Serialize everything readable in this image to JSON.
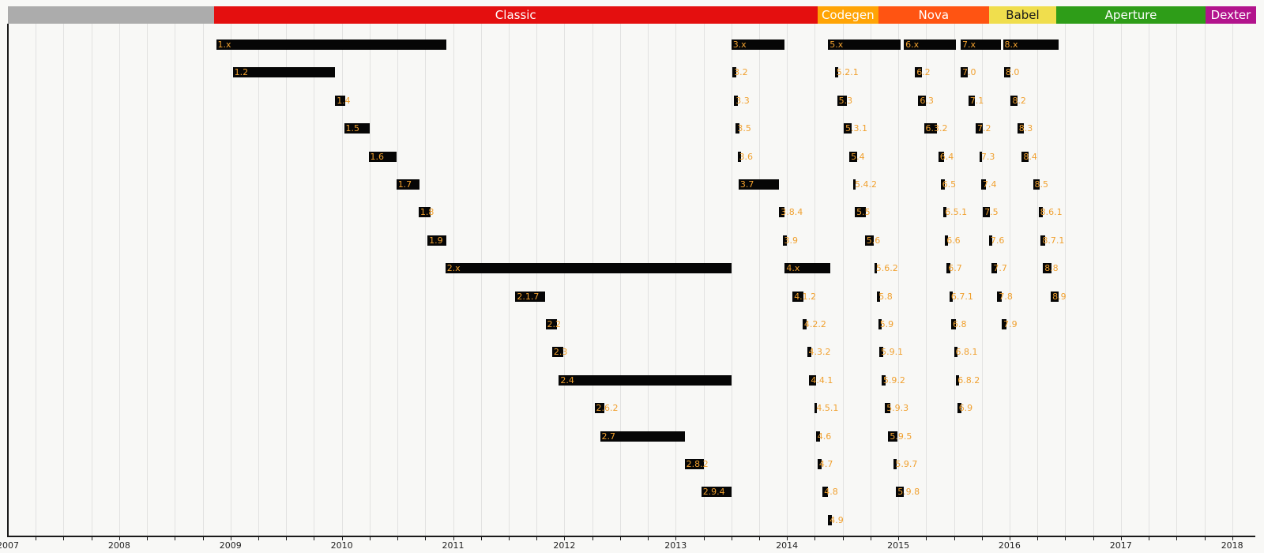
{
  "chart_data": {
    "type": "gantt",
    "title": "Version release timeline",
    "bar_color": "#060606",
    "bar_label_color": "#f0a02f",
    "x_axis": {
      "min": 2007,
      "max": 2018.215,
      "tick_years": [
        2007,
        2008,
        2009,
        2010,
        2011,
        2012,
        2013,
        2014,
        2015,
        2016,
        2017,
        2018
      ],
      "minor_tick_interval": 0.25,
      "grid": true
    },
    "eras": [
      {
        "label": "",
        "start": 2007.0,
        "end": 2008.85,
        "color": "#acacac",
        "text_color": "#ffffff"
      },
      {
        "label": "Classic",
        "start": 2008.85,
        "end": 2014.275,
        "color": "#e40f0f",
        "text_color": "#ffffff"
      },
      {
        "label": "Codegen",
        "start": 2014.275,
        "end": 2014.82,
        "color": "#ffa405",
        "text_color": "#ffffff"
      },
      {
        "label": "Nova",
        "start": 2014.82,
        "end": 2015.815,
        "color": "#ff5412",
        "text_color": "#ffffff"
      },
      {
        "label": "Babel",
        "start": 2015.815,
        "end": 2016.42,
        "color": "#f0de4d",
        "text_color": "#1a1a1a"
      },
      {
        "label": "Aperture",
        "start": 2016.42,
        "end": 2017.76,
        "color": "#2e9d18",
        "text_color": "#ffffff"
      },
      {
        "label": "Dexter",
        "start": 2017.76,
        "end": 2018.215,
        "color": "#b2138c",
        "text_color": "#ffffff"
      }
    ],
    "releases": [
      {
        "label": "1.x",
        "row": 1,
        "start": 2008.87,
        "end": 2010.94
      },
      {
        "label": "1.2",
        "row": 2,
        "start": 2009.02,
        "end": 2009.94
      },
      {
        "label": "1.4",
        "row": 3,
        "start": 2009.94,
        "end": 2010.03
      },
      {
        "label": "1.5",
        "row": 4,
        "start": 2010.02,
        "end": 2010.25
      },
      {
        "label": "1.6",
        "row": 5,
        "start": 2010.24,
        "end": 2010.49
      },
      {
        "label": "1.7",
        "row": 6,
        "start": 2010.49,
        "end": 2010.7
      },
      {
        "label": "1.8",
        "row": 7,
        "start": 2010.69,
        "end": 2010.8
      },
      {
        "label": "1.9",
        "row": 8,
        "start": 2010.77,
        "end": 2010.94
      },
      {
        "label": "2.x",
        "row": 9,
        "start": 2010.93,
        "end": 2013.5
      },
      {
        "label": "2.1.7",
        "row": 10,
        "start": 2011.56,
        "end": 2011.83
      },
      {
        "label": "2.2",
        "row": 11,
        "start": 2011.83,
        "end": 2011.93
      },
      {
        "label": "2.3",
        "row": 12,
        "start": 2011.89,
        "end": 2011.99
      },
      {
        "label": "2.4",
        "row": 13,
        "start": 2011.95,
        "end": 2013.5
      },
      {
        "label": "2.6.2",
        "row": 14,
        "start": 2012.27,
        "end": 2012.36
      },
      {
        "label": "2.7",
        "row": 15,
        "start": 2012.32,
        "end": 2013.08
      },
      {
        "label": "2.8.2",
        "row": 16,
        "start": 2013.08,
        "end": 2013.25
      },
      {
        "label": "2.9.4",
        "row": 17,
        "start": 2013.23,
        "end": 2013.5
      },
      {
        "label": "3.x",
        "row": 1,
        "start": 2013.5,
        "end": 2013.98
      },
      {
        "label": "3.2",
        "row": 2,
        "start": 2013.51,
        "end": 2013.545
      },
      {
        "label": "3.3",
        "row": 3,
        "start": 2013.525,
        "end": 2013.56
      },
      {
        "label": "3.5",
        "row": 4,
        "start": 2013.54,
        "end": 2013.57
      },
      {
        "label": "3.6",
        "row": 5,
        "start": 2013.555,
        "end": 2013.59
      },
      {
        "label": "3.7",
        "row": 6,
        "start": 2013.565,
        "end": 2013.93
      },
      {
        "label": "3.8.4",
        "row": 7,
        "start": 2013.93,
        "end": 2013.975
      },
      {
        "label": "3.9",
        "row": 8,
        "start": 2013.96,
        "end": 2014.0
      },
      {
        "label": "4.x",
        "row": 9,
        "start": 2013.98,
        "end": 2014.39
      },
      {
        "label": "4.1.2",
        "row": 10,
        "start": 2014.05,
        "end": 2014.15
      },
      {
        "label": "4.2.2",
        "row": 11,
        "start": 2014.14,
        "end": 2014.18
      },
      {
        "label": "4.3.2",
        "row": 12,
        "start": 2014.18,
        "end": 2014.22
      },
      {
        "label": "4.4.1",
        "row": 13,
        "start": 2014.2,
        "end": 2014.26
      },
      {
        "label": "4.5.1",
        "row": 14,
        "start": 2014.25,
        "end": 2014.27
      },
      {
        "label": "4.6",
        "row": 15,
        "start": 2014.26,
        "end": 2014.3
      },
      {
        "label": "4.7",
        "row": 16,
        "start": 2014.275,
        "end": 2014.31
      },
      {
        "label": "4.8",
        "row": 17,
        "start": 2014.32,
        "end": 2014.37
      },
      {
        "label": "4.9",
        "row": 18,
        "start": 2014.37,
        "end": 2014.405
      },
      {
        "label": "5.x",
        "row": 1,
        "start": 2014.37,
        "end": 2015.02
      },
      {
        "label": "5.2.1",
        "row": 2,
        "start": 2014.43,
        "end": 2014.46
      },
      {
        "label": "5.3",
        "row": 3,
        "start": 2014.45,
        "end": 2014.54
      },
      {
        "label": "5.3.1",
        "row": 4,
        "start": 2014.51,
        "end": 2014.58
      },
      {
        "label": "5.4",
        "row": 5,
        "start": 2014.56,
        "end": 2014.63
      },
      {
        "label": "5.4.2",
        "row": 6,
        "start": 2014.595,
        "end": 2014.615
      },
      {
        "label": "5.5",
        "row": 7,
        "start": 2014.61,
        "end": 2014.71
      },
      {
        "label": "5.6",
        "row": 8,
        "start": 2014.7,
        "end": 2014.78
      },
      {
        "label": "5.6.2",
        "row": 9,
        "start": 2014.785,
        "end": 2014.81
      },
      {
        "label": "5.8",
        "row": 10,
        "start": 2014.81,
        "end": 2014.835
      },
      {
        "label": "5.9",
        "row": 11,
        "start": 2014.82,
        "end": 2014.85
      },
      {
        "label": "5.9.1",
        "row": 12,
        "start": 2014.83,
        "end": 2014.865
      },
      {
        "label": "5.9.2",
        "row": 13,
        "start": 2014.85,
        "end": 2014.89
      },
      {
        "label": "5.9.3",
        "row": 14,
        "start": 2014.88,
        "end": 2014.93
      },
      {
        "label": "5.9.5",
        "row": 15,
        "start": 2014.91,
        "end": 2014.99
      },
      {
        "label": "5.9.7",
        "row": 16,
        "start": 2014.96,
        "end": 2014.985
      },
      {
        "label": "5.9.8",
        "row": 17,
        "start": 2014.98,
        "end": 2015.05
      },
      {
        "label": "6.x",
        "row": 1,
        "start": 2015.05,
        "end": 2015.52
      },
      {
        "label": "6.2",
        "row": 2,
        "start": 2015.15,
        "end": 2015.21
      },
      {
        "label": "6.3",
        "row": 3,
        "start": 2015.18,
        "end": 2015.25
      },
      {
        "label": "6.3.2",
        "row": 4,
        "start": 2015.23,
        "end": 2015.35
      },
      {
        "label": "6.4",
        "row": 5,
        "start": 2015.36,
        "end": 2015.41
      },
      {
        "label": "6.5",
        "row": 6,
        "start": 2015.38,
        "end": 2015.42
      },
      {
        "label": "6.5.1",
        "row": 7,
        "start": 2015.405,
        "end": 2015.435
      },
      {
        "label": "6.6",
        "row": 8,
        "start": 2015.42,
        "end": 2015.45
      },
      {
        "label": "6.7",
        "row": 9,
        "start": 2015.435,
        "end": 2015.47
      },
      {
        "label": "6.7.1",
        "row": 10,
        "start": 2015.46,
        "end": 2015.49
      },
      {
        "label": "6.8",
        "row": 11,
        "start": 2015.475,
        "end": 2015.52
      },
      {
        "label": "6.8.1",
        "row": 12,
        "start": 2015.5,
        "end": 2015.53
      },
      {
        "label": "6.8.2",
        "row": 13,
        "start": 2015.52,
        "end": 2015.55
      },
      {
        "label": "6.9",
        "row": 14,
        "start": 2015.53,
        "end": 2015.565
      },
      {
        "label": "7.x",
        "row": 1,
        "start": 2015.56,
        "end": 2015.92
      },
      {
        "label": "7.0",
        "row": 2,
        "start": 2015.56,
        "end": 2015.62
      },
      {
        "label": "7.1",
        "row": 3,
        "start": 2015.63,
        "end": 2015.69
      },
      {
        "label": "7.2",
        "row": 4,
        "start": 2015.695,
        "end": 2015.755
      },
      {
        "label": "7.3",
        "row": 5,
        "start": 2015.73,
        "end": 2015.75
      },
      {
        "label": "7.4",
        "row": 6,
        "start": 2015.745,
        "end": 2015.79
      },
      {
        "label": "7.5",
        "row": 7,
        "start": 2015.76,
        "end": 2015.82
      },
      {
        "label": "7.6",
        "row": 8,
        "start": 2015.815,
        "end": 2015.845
      },
      {
        "label": "7.7",
        "row": 9,
        "start": 2015.84,
        "end": 2015.89
      },
      {
        "label": "7.8",
        "row": 10,
        "start": 2015.89,
        "end": 2015.93
      },
      {
        "label": "7.9",
        "row": 11,
        "start": 2015.93,
        "end": 2015.97
      },
      {
        "label": "8.x",
        "row": 1,
        "start": 2015.94,
        "end": 2016.44
      },
      {
        "label": "8.0",
        "row": 2,
        "start": 2015.95,
        "end": 2016.01
      },
      {
        "label": "8.2",
        "row": 3,
        "start": 2016.01,
        "end": 2016.07
      },
      {
        "label": "8.3",
        "row": 4,
        "start": 2016.07,
        "end": 2016.13
      },
      {
        "label": "8.4",
        "row": 5,
        "start": 2016.11,
        "end": 2016.17
      },
      {
        "label": "8.5",
        "row": 6,
        "start": 2016.21,
        "end": 2016.27
      },
      {
        "label": "8.6.1",
        "row": 7,
        "start": 2016.26,
        "end": 2016.3
      },
      {
        "label": "8.7.1",
        "row": 8,
        "start": 2016.28,
        "end": 2016.32
      },
      {
        "label": "8.8",
        "row": 9,
        "start": 2016.3,
        "end": 2016.38
      },
      {
        "label": "8.9",
        "row": 10,
        "start": 2016.37,
        "end": 2016.44
      }
    ]
  }
}
